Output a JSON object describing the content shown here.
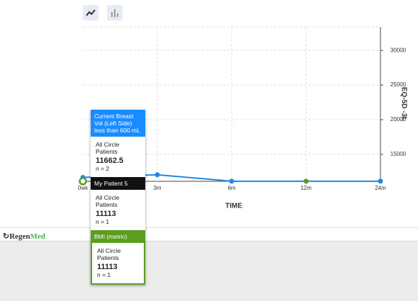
{
  "chart_data": {
    "type": "line",
    "x_label": "TIME",
    "y_label": "EQ-5D -3L",
    "categories": [
      "0wk",
      "3m",
      "6m",
      "12m",
      "24m"
    ],
    "series": [
      {
        "color": "#1e88e5",
        "values": [
          11662.5,
          12050,
          11113,
          11113,
          11113
        ]
      },
      {
        "color": "#5a9e1f",
        "values": [
          11113,
          null,
          null,
          11113,
          null
        ]
      }
    ],
    "ylim": [
      11100,
      33400
    ],
    "yticks": [
      15000,
      20000,
      25000,
      30000
    ],
    "grid": true
  },
  "tooltip": {
    "sections": [
      {
        "header": "Current Breast Vol (Left Side) less than 600 mL",
        "color": "#1a8cff",
        "label": "All Circle Patients",
        "value": 11662.5,
        "n": "n = 2"
      },
      {
        "header": "My Patient 5",
        "color": "#111111",
        "label": "All Circle Patients",
        "value": 11113,
        "n": "n = 1"
      },
      {
        "header": "BMI (metric)",
        "color": "#5a9e1f",
        "label": "All Circle Patients",
        "value": 11113,
        "n": "n = 1"
      }
    ]
  },
  "footer": {
    "brand": [
      "Regen",
      "Med"
    ]
  }
}
